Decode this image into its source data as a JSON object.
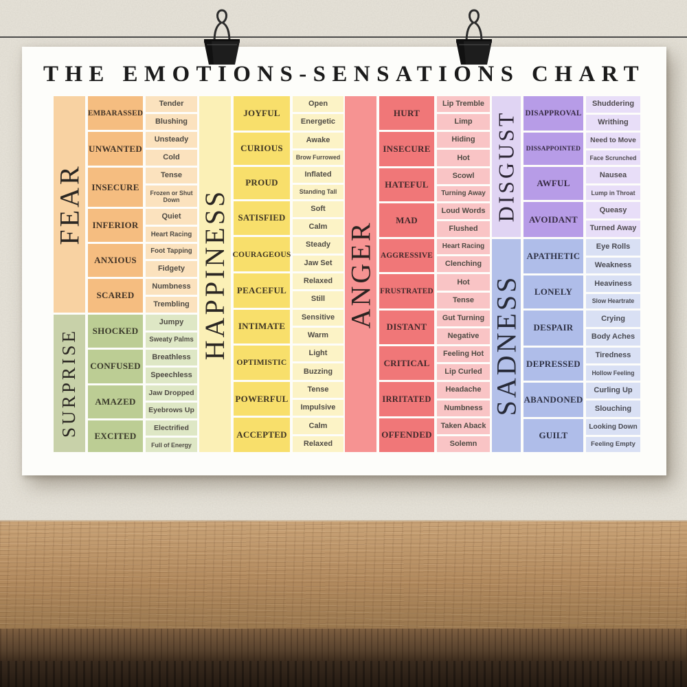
{
  "scene": {
    "colors": {
      "wall": "#e8e4da",
      "wire": "#3b3b3b",
      "clip": "#1d1d1d",
      "poster": "#fdfdfa",
      "title_text": "#1b1b1b",
      "wood_light": "#c9a377",
      "wood_mid": "#b28a5e",
      "wood_dark": "#9a784f",
      "wood_edge": "#7d5e40",
      "wood_front": "#241a12"
    },
    "icons": {
      "left_clip": "binder-clip-icon",
      "right_clip": "binder-clip-icon"
    }
  },
  "chart_data": {
    "type": "table",
    "title": "THE EMOTIONS-SENSATIONS CHART",
    "legend_position": "none",
    "groups": [
      {
        "id": "fear",
        "name": "FEAR",
        "colors": {
          "band": "#f8d2a2",
          "emotion": "#f5bd80",
          "sensation": "#fbe2be",
          "label_text": "#2b2723",
          "emotion_text": "#3f3226",
          "sensation_text": "#4e4a43"
        },
        "rows": [
          {
            "emotion": "EMBARASSED",
            "sensations": [
              "Tender",
              "Blushing"
            ]
          },
          {
            "emotion": "UNWANTED",
            "sensations": [
              "Unsteady",
              "Cold"
            ]
          },
          {
            "emotion": "INSECURE",
            "sensations": [
              "Tense",
              "Frozen or Shut Down"
            ]
          },
          {
            "emotion": "INFERIOR",
            "sensations": [
              "Quiet",
              "Heart Racing"
            ]
          },
          {
            "emotion": "ANXIOUS",
            "sensations": [
              "Foot Tapping",
              "Fidgety"
            ]
          },
          {
            "emotion": "SCARED",
            "sensations": [
              "Numbness",
              "Trembling"
            ]
          }
        ]
      },
      {
        "id": "surprise",
        "name": "SURPRISE",
        "colors": {
          "band": "#c8d1a9",
          "emotion": "#bccd94",
          "sensation": "#dee7c5",
          "label_text": "#2b2723",
          "emotion_text": "#39382a",
          "sensation_text": "#4e4a43"
        },
        "rows": [
          {
            "emotion": "SHOCKED",
            "sensations": [
              "Jumpy",
              "Sweaty Palms"
            ]
          },
          {
            "emotion": "CONFUSED",
            "sensations": [
              "Breathless",
              "Speechless"
            ]
          },
          {
            "emotion": "AMAZED",
            "sensations": [
              "Jaw Dropped",
              "Eyebrows Up"
            ]
          },
          {
            "emotion": "EXCITED",
            "sensations": [
              "Electrified",
              "Full of Energy"
            ]
          }
        ]
      },
      {
        "id": "happiness",
        "name": "HAPPINESS",
        "colors": {
          "band": "#fbf0b6",
          "emotion": "#f8df6b",
          "sensation": "#fcf3c6",
          "label_text": "#2b2723",
          "emotion_text": "#3e3524",
          "sensation_text": "#4e4a43"
        },
        "rows": [
          {
            "emotion": "JOYFUL",
            "sensations": [
              "Open",
              "Energetic"
            ]
          },
          {
            "emotion": "CURIOUS",
            "sensations": [
              "Awake",
              "Brow Furrowed"
            ]
          },
          {
            "emotion": "PROUD",
            "sensations": [
              "Inflated",
              "Standing Tall"
            ]
          },
          {
            "emotion": "SATISFIED",
            "sensations": [
              "Soft",
              "Calm"
            ]
          },
          {
            "emotion": "COURAGEOUS",
            "sensations": [
              "Steady",
              "Jaw Set"
            ]
          },
          {
            "emotion": "PEACEFUL",
            "sensations": [
              "Relaxed",
              "Still"
            ]
          },
          {
            "emotion": "INTIMATE",
            "sensations": [
              "Sensitive",
              "Warm"
            ]
          },
          {
            "emotion": "OPTIMISTIC",
            "sensations": [
              "Light",
              "Buzzing"
            ]
          },
          {
            "emotion": "POWERFUL",
            "sensations": [
              "Tense",
              "Impulsive"
            ]
          },
          {
            "emotion": "ACCEPTED",
            "sensations": [
              "Calm",
              "Relaxed"
            ]
          }
        ]
      },
      {
        "id": "anger",
        "name": "ANGER",
        "colors": {
          "band": "#f69392",
          "emotion": "#f07778",
          "sensation": "#f9c4c5",
          "label_text": "#2b2321",
          "emotion_text": "#42292b",
          "sensation_text": "#4e4a43"
        },
        "rows": [
          {
            "emotion": "HURT",
            "sensations": [
              "Lip Tremble",
              "Limp"
            ]
          },
          {
            "emotion": "INSECURE",
            "sensations": [
              "Hiding",
              "Hot"
            ]
          },
          {
            "emotion": "HATEFUL",
            "sensations": [
              "Scowl",
              "Turning Away"
            ]
          },
          {
            "emotion": "MAD",
            "sensations": [
              "Loud Words",
              "Flushed"
            ]
          },
          {
            "emotion": "AGGRESSIVE",
            "sensations": [
              "Heart Racing",
              "Clenching"
            ]
          },
          {
            "emotion": "FRUSTRATED",
            "sensations": [
              "Hot",
              "Tense"
            ]
          },
          {
            "emotion": "DISTANT",
            "sensations": [
              "Gut Turning",
              "Negative"
            ]
          },
          {
            "emotion": "CRITICAL",
            "sensations": [
              "Feeling Hot",
              "Lip Curled"
            ]
          },
          {
            "emotion": "IRRITATED",
            "sensations": [
              "Headache",
              "Numbness"
            ]
          },
          {
            "emotion": "OFFENDED",
            "sensations": [
              "Taken Aback",
              "Solemn"
            ]
          }
        ]
      },
      {
        "id": "disgust",
        "name": "DISGUST",
        "colors": {
          "band": "#e0d4f3",
          "emotion": "#b79ce7",
          "sensation": "#e8def8",
          "label_text": "#2b2533",
          "emotion_text": "#352a42",
          "sensation_text": "#4e4a4e"
        },
        "rows": [
          {
            "emotion": "DISAPPROVAL",
            "sensations": [
              "Shuddering",
              "Writhing"
            ]
          },
          {
            "emotion": "DISSAPPOINTED",
            "sensations": [
              "Need to Move",
              "Face Scrunched"
            ]
          },
          {
            "emotion": "AWFUL",
            "sensations": [
              "Nausea",
              "Lump in Throat"
            ]
          },
          {
            "emotion": "AVOIDANT",
            "sensations": [
              "Queasy",
              "Turned Away"
            ]
          }
        ]
      },
      {
        "id": "sadness",
        "name": "SADNESS",
        "colors": {
          "band": "#b3c0e9",
          "emotion": "#afbde9",
          "sensation": "#d9e0f4",
          "label_text": "#272a38",
          "emotion_text": "#2f3245",
          "sensation_text": "#494a52"
        },
        "rows": [
          {
            "emotion": "APATHETIC",
            "sensations": [
              "Eye Rolls",
              "Weakness"
            ]
          },
          {
            "emotion": "LONELY",
            "sensations": [
              "Heaviness",
              "Slow Heartrate"
            ]
          },
          {
            "emotion": "DESPAIR",
            "sensations": [
              "Crying",
              "Body Aches"
            ]
          },
          {
            "emotion": "DEPRESSED",
            "sensations": [
              "Tiredness",
              "Hollow Feeling"
            ]
          },
          {
            "emotion": "ABANDONED",
            "sensations": [
              "Curling Up",
              "Slouching"
            ]
          },
          {
            "emotion": "GUILT",
            "sensations": [
              "Looking Down",
              "Feeling Empty"
            ]
          }
        ]
      }
    ]
  }
}
